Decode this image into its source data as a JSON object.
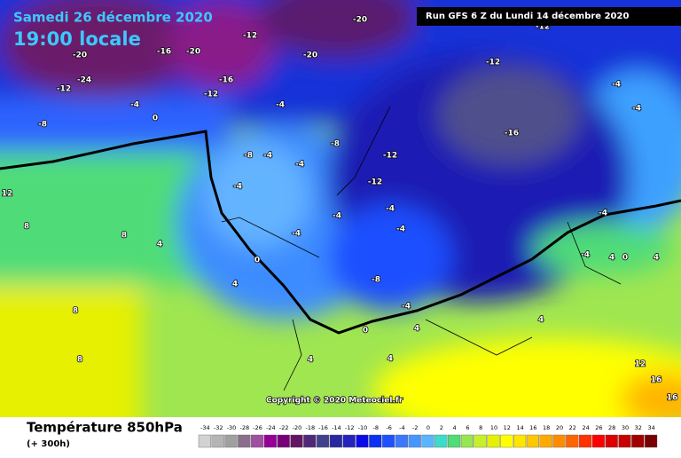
{
  "header": {
    "date": "Samedi 26 décembre 2020",
    "time": "19:00 locale",
    "run": "Run GFS 6 Z du Lundi 14 décembre 2020"
  },
  "copyright": "Copyright © 2020 Meteociel.fr",
  "legend": {
    "title": "Température 850hPa",
    "subtitle": "(+ 300h)",
    "scale": [
      -34,
      -32,
      -30,
      -28,
      -26,
      -24,
      -22,
      -20,
      -18,
      -16,
      -14,
      -12,
      -10,
      -8,
      -6,
      -4,
      -2,
      0,
      2,
      4,
      6,
      8,
      10,
      12,
      14,
      16,
      18,
      20,
      22,
      24,
      26,
      28,
      30,
      32,
      34
    ],
    "colors": [
      "#d2d2d2",
      "#b4b4b4",
      "#a0a0a0",
      "#8c6e8c",
      "#a050a0",
      "#960096",
      "#780078",
      "#641464",
      "#502878",
      "#40408c",
      "#2828a0",
      "#2323be",
      "#0a0ae6",
      "#0a32f0",
      "#1e50ff",
      "#3c78ff",
      "#4696ff",
      "#5ab4ff",
      "#3cdcc8",
      "#50dc78",
      "#96e650",
      "#c8f028",
      "#e6f000",
      "#ffff00",
      "#ffe600",
      "#ffc800",
      "#ffaa00",
      "#ff8c00",
      "#ff6400",
      "#ff3200",
      "#ff0000",
      "#dc0000",
      "#c80000",
      "#a00000",
      "#780000"
    ]
  },
  "map_labels": [
    -24,
    -20,
    -16,
    -20,
    -12,
    -8,
    -4,
    0,
    -12,
    -20,
    -16,
    -12,
    -4,
    -12,
    -16,
    -12,
    -8,
    -8,
    -4,
    -4,
    -4,
    -12,
    -4,
    -4,
    -4,
    0,
    -4,
    -8,
    -4,
    0,
    4,
    -4,
    4,
    0,
    -4,
    -4,
    4,
    8,
    8,
    4,
    4,
    8,
    12,
    4,
    4,
    8,
    12,
    16,
    16,
    4,
    -4,
    -12,
    -20
  ]
}
